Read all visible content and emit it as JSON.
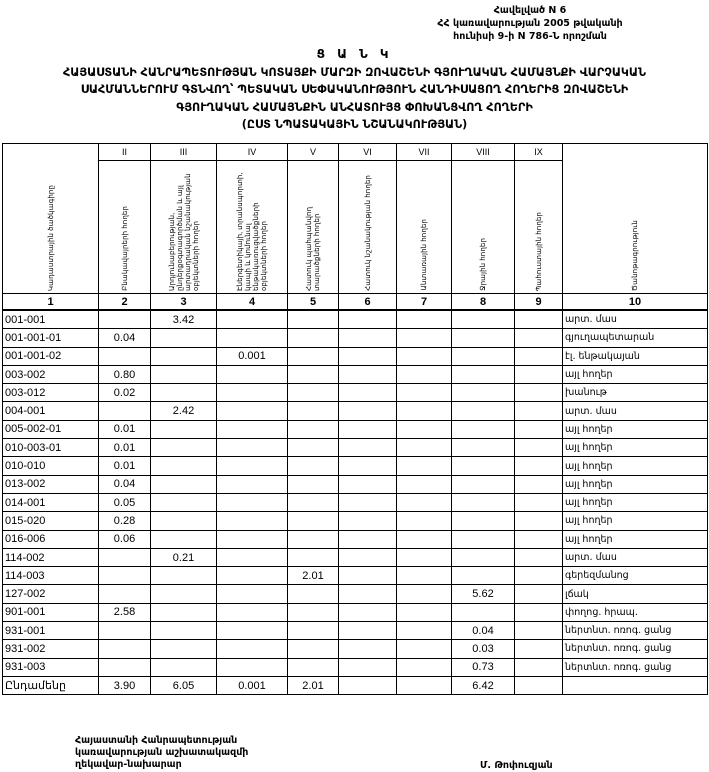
{
  "annex": {
    "lines": [
      "Հավելված N 6",
      "ՀՀ կառավարության 2005 թվականի",
      "հունիսի 9-ի N 786-Ն որոշման"
    ]
  },
  "title": {
    "lines": [
      "Ց Ա Ն Կ",
      "ՀԱՅԱՍՏԱՆԻ ՀԱՆՐԱՊԵՏՈՒԹՅԱՆ ԿՈՏԱՅՔԻ ՄԱՐԶԻ ԶՈՎԱՇԵՆԻ ԳՅՈՒՂԱԿԱՆ ՀԱՄԱՅՆՔԻ ՎԱՐՉԱԿԱՆ",
      "ՍԱՀՄԱՆՆԵՐՈՒՄ ԳՏՆՎՈՂ՝ ՊԵՏԱԿԱՆ ՍԵՓԱԿԱՆՈՒԹՅՈՒՆ ՀԱՆԴԻՍԱՑՈՂ ՀՈՂԵՐԻՑ ԶՈՎԱՇԵՆԻ",
      "ԳՅՈՒՂԱԿԱՆ ՀԱՄԱՅՆՔԻՆ ԱՆՀԱՏՈՒՅՑ ՓՈԽԱՆՑՎՈՂ ՀՈՂԵՐԻ",
      "(ԸՍՏ ՆՊԱՏԱԿԱՅԻՆ ՆՇԱՆԱԿՈՒԹՅԱՆ)"
    ]
  },
  "table": {
    "roman": [
      "II",
      "III",
      "IV",
      "V",
      "VI",
      "VII",
      "VIII",
      "IX"
    ],
    "headers": [
      "Կադաստրային ծածկագիրը",
      "Բնակավայրերի հողեր",
      "Արդյունաբերության, ընդերքօգտագործման և այլ արտադրական նշանակության օբյեկտների հողեր",
      "Էներգետիկայի, տրանսպորտի, կապի և կոմունալ ենթակառուցվածքների օբյեկտների հողեր",
      "Հատուկ պահպանվող տարածքների հողեր",
      "Հատուկ նշանակության հողեր",
      "Անտառային հողեր",
      "Ջրային հողեր",
      "Պահուստային հողեր",
      "Ծանոթագրություն"
    ],
    "numbers": [
      "1",
      "2",
      "3",
      "4",
      "5",
      "6",
      "7",
      "8",
      "9",
      "10"
    ],
    "rows": [
      [
        "001-001",
        "",
        "3.42",
        "",
        "",
        "",
        "",
        "",
        "",
        "արտ. մաս"
      ],
      [
        "001-001-01",
        "0.04",
        "",
        "",
        "",
        "",
        "",
        "",
        "",
        "գյուղապետարան"
      ],
      [
        "001-001-02",
        "",
        "",
        "0.001",
        "",
        "",
        "",
        "",
        "",
        "էլ. ենթակայան"
      ],
      [
        "003-002",
        "0.80",
        "",
        "",
        "",
        "",
        "",
        "",
        "",
        "այլ հողեր"
      ],
      [
        "003-012",
        "0.02",
        "",
        "",
        "",
        "",
        "",
        "",
        "",
        "խանութ"
      ],
      [
        "004-001",
        "",
        "2.42",
        "",
        "",
        "",
        "",
        "",
        "",
        "արտ. մաս"
      ],
      [
        "005-002-01",
        "0.01",
        "",
        "",
        "",
        "",
        "",
        "",
        "",
        "այլ հողեր"
      ],
      [
        "010-003-01",
        "0.01",
        "",
        "",
        "",
        "",
        "",
        "",
        "",
        "այլ հողեր"
      ],
      [
        "010-010",
        "0.01",
        "",
        "",
        "",
        "",
        "",
        "",
        "",
        "այլ հողեր"
      ],
      [
        "013-002",
        "0.04",
        "",
        "",
        "",
        "",
        "",
        "",
        "",
        "այլ հողեր"
      ],
      [
        "014-001",
        "0.05",
        "",
        "",
        "",
        "",
        "",
        "",
        "",
        "այլ հողեր"
      ],
      [
        "015-020",
        "0.28",
        "",
        "",
        "",
        "",
        "",
        "",
        "",
        "այլ հողեր"
      ],
      [
        "016-006",
        "0.06",
        "",
        "",
        "",
        "",
        "",
        "",
        "",
        "այլ հողեր"
      ],
      [
        "114-002",
        "",
        "0.21",
        "",
        "",
        "",
        "",
        "",
        "",
        "արտ. մաս"
      ],
      [
        "114-003",
        "",
        "",
        "",
        "2.01",
        "",
        "",
        "",
        "",
        "գերեզմանոց"
      ],
      [
        "127-002",
        "",
        "",
        "",
        "",
        "",
        "",
        "5.62",
        "",
        "լճակ"
      ],
      [
        "901-001",
        "2.58",
        "",
        "",
        "",
        "",
        "",
        "",
        "",
        "փողոց. հրապ."
      ],
      [
        "931-001",
        "",
        "",
        "",
        "",
        "",
        "",
        "0.04",
        "",
        "ներտնտ. ոռոգ. ցանց"
      ],
      [
        "931-002",
        "",
        "",
        "",
        "",
        "",
        "",
        "0.03",
        "",
        "ներտնտ. ոռոգ. ցանց"
      ],
      [
        "931-003",
        "",
        "",
        "",
        "",
        "",
        "",
        "0.73",
        "",
        "ներտնտ. ոռոգ. ցանց"
      ],
      [
        "Ընդամենը",
        "3.90",
        "6.05",
        "0.001",
        "2.01",
        "",
        "",
        "6.42",
        "",
        ""
      ]
    ]
  },
  "signature": {
    "position_lines": [
      "Հայաստանի Հանրապետության",
      "կառավարության աշխատակազմի",
      "ղեկավար-նախարար"
    ],
    "name": "Մ. Թոփուզյան"
  }
}
